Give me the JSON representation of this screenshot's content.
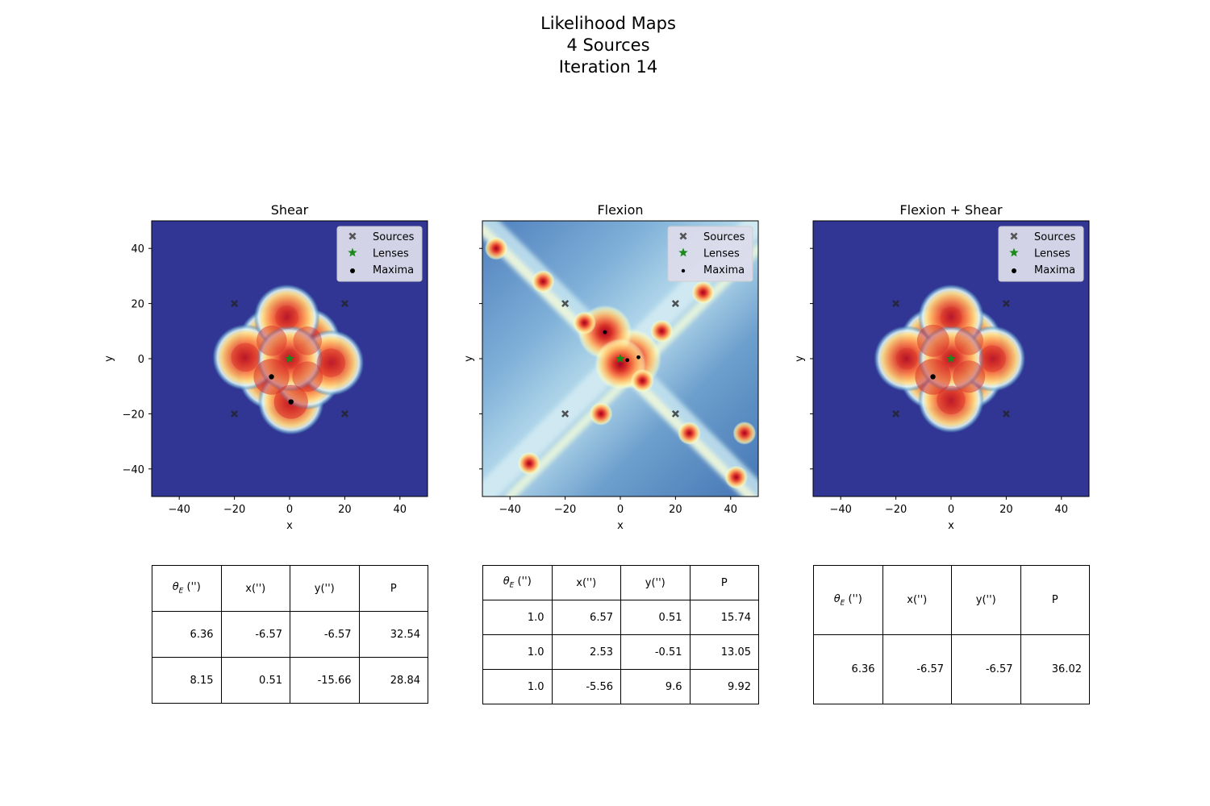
{
  "figure": {
    "title_lines": [
      "Likelihood Maps",
      "4 Sources",
      "Iteration 14"
    ]
  },
  "colors": {
    "background_map": "#313695",
    "source_marker": "#555555",
    "lens_marker": "#1a8a1a",
    "maxima_marker": "#000000",
    "legend_bg": "#dcdcec"
  },
  "chart_data": [
    {
      "type": "heatmap",
      "title": "Shear",
      "xlabel": "x",
      "ylabel": "y",
      "xlim": [
        -50,
        50
      ],
      "ylim": [
        -50,
        50
      ],
      "xticks": [
        -40,
        -20,
        0,
        20,
        40
      ],
      "yticks": [
        -40,
        -20,
        0,
        20,
        40
      ],
      "ytick_labels_visible": true,
      "legend": {
        "placement": "top-right",
        "entries": [
          "Sources",
          "Lenses",
          "Maxima"
        ]
      },
      "sources": [
        [
          -20,
          20
        ],
        [
          20,
          20
        ],
        [
          -20,
          -20
        ],
        [
          20,
          -20
        ]
      ],
      "lenses": [
        [
          0,
          0
        ]
      ],
      "maxima": [
        [
          -6.57,
          -6.57
        ],
        [
          0.51,
          -15.66
        ]
      ],
      "blobs": [
        {
          "x": -6.57,
          "y": -6.57,
          "strength": 1.0
        },
        {
          "x": 0.51,
          "y": -15.66,
          "strength": 0.95
        },
        {
          "x": -6.5,
          "y": 6.5,
          "strength": 0.85
        },
        {
          "x": 6.5,
          "y": 6.5,
          "strength": 0.8
        },
        {
          "x": 6.5,
          "y": -6.5,
          "strength": 0.85
        },
        {
          "x": -16,
          "y": 0.5,
          "strength": 0.8
        },
        {
          "x": 15,
          "y": -1.5,
          "strength": 0.8
        },
        {
          "x": -1,
          "y": 15,
          "strength": 0.65
        },
        {
          "x": 0,
          "y": 0,
          "strength": 0.55
        }
      ],
      "table": {
        "headers": [
          "θ_E ('')",
          "x('')",
          "y('')",
          "P"
        ],
        "rows": [
          [
            "6.36",
            "-6.57",
            "-6.57",
            "32.54"
          ],
          [
            "8.15",
            "0.51",
            "-15.66",
            "28.84"
          ]
        ]
      }
    },
    {
      "type": "heatmap",
      "title": "Flexion",
      "xlabel": "x",
      "ylabel": "y",
      "xlim": [
        -50,
        50
      ],
      "ylim": [
        -50,
        50
      ],
      "xticks": [
        -40,
        -20,
        0,
        20,
        40
      ],
      "yticks": [
        -40,
        -20,
        0,
        20,
        40
      ],
      "ytick_labels_visible": false,
      "legend": {
        "placement": "top-right",
        "entries": [
          "Sources",
          "Lenses",
          "Maxima"
        ]
      },
      "sources": [
        [
          -20,
          20
        ],
        [
          20,
          20
        ],
        [
          -20,
          -20
        ],
        [
          20,
          -20
        ]
      ],
      "lenses": [
        [
          0,
          0
        ]
      ],
      "maxima": [
        [
          6.57,
          0.51
        ],
        [
          2.53,
          -0.51
        ],
        [
          -5.56,
          9.6
        ]
      ],
      "blobs": [
        {
          "x": 4,
          "y": 0,
          "strength": 1.0
        },
        {
          "x": -5.56,
          "y": 9.6,
          "strength": 0.9
        },
        {
          "x": 0,
          "y": -2,
          "strength": 0.85
        },
        {
          "x": 8,
          "y": -8,
          "strength": 0.6
        },
        {
          "x": 15,
          "y": 10,
          "strength": 0.5
        },
        {
          "x": -13,
          "y": 13,
          "strength": 0.45
        },
        {
          "x": -7,
          "y": -20,
          "strength": 0.5
        },
        {
          "x": -28,
          "y": 28,
          "strength": 0.35
        },
        {
          "x": 30,
          "y": 24,
          "strength": 0.3
        },
        {
          "x": -33,
          "y": -38,
          "strength": 0.3
        },
        {
          "x": 42,
          "y": -43,
          "strength": 0.3
        },
        {
          "x": 25,
          "y": -27,
          "strength": 0.3
        },
        {
          "x": 45,
          "y": -27,
          "strength": 0.25
        },
        {
          "x": -45,
          "y": 40,
          "strength": 0.25
        }
      ],
      "table": {
        "headers": [
          "θ_E ('')",
          "x('')",
          "y('')",
          "P"
        ],
        "rows": [
          [
            "1.0",
            "6.57",
            "0.51",
            "15.74"
          ],
          [
            "1.0",
            "2.53",
            "-0.51",
            "13.05"
          ],
          [
            "1.0",
            "-5.56",
            "9.6",
            "9.92"
          ]
        ]
      }
    },
    {
      "type": "heatmap",
      "title": "Flexion + Shear",
      "xlabel": "x",
      "ylabel": "y",
      "xlim": [
        -50,
        50
      ],
      "ylim": [
        -50,
        50
      ],
      "xticks": [
        -40,
        -20,
        0,
        20,
        40
      ],
      "yticks": [
        -40,
        -20,
        0,
        20,
        40
      ],
      "ytick_labels_visible": false,
      "legend": {
        "placement": "top-right",
        "entries": [
          "Sources",
          "Lenses",
          "Maxima"
        ]
      },
      "sources": [
        [
          -20,
          20
        ],
        [
          20,
          20
        ],
        [
          -20,
          -20
        ],
        [
          20,
          -20
        ]
      ],
      "lenses": [
        [
          0,
          0
        ]
      ],
      "maxima": [
        [
          -6.57,
          -6.57
        ]
      ],
      "blobs": [
        {
          "x": -6.57,
          "y": -6.57,
          "strength": 1.0
        },
        {
          "x": 6.5,
          "y": -6.5,
          "strength": 0.9
        },
        {
          "x": -6.5,
          "y": 6.5,
          "strength": 0.9
        },
        {
          "x": 6.5,
          "y": 6.5,
          "strength": 0.8
        },
        {
          "x": 0,
          "y": -15,
          "strength": 0.8
        },
        {
          "x": 15,
          "y": 0,
          "strength": 0.75
        },
        {
          "x": -16,
          "y": 0,
          "strength": 0.6
        },
        {
          "x": 0,
          "y": 15,
          "strength": 0.6
        },
        {
          "x": 0,
          "y": 0,
          "strength": 0.5
        }
      ],
      "table": {
        "headers": [
          "θ_E ('')",
          "x('')",
          "y('')",
          "P"
        ],
        "rows": [
          [
            "6.36",
            "-6.57",
            "-6.57",
            "36.02"
          ]
        ]
      }
    }
  ]
}
